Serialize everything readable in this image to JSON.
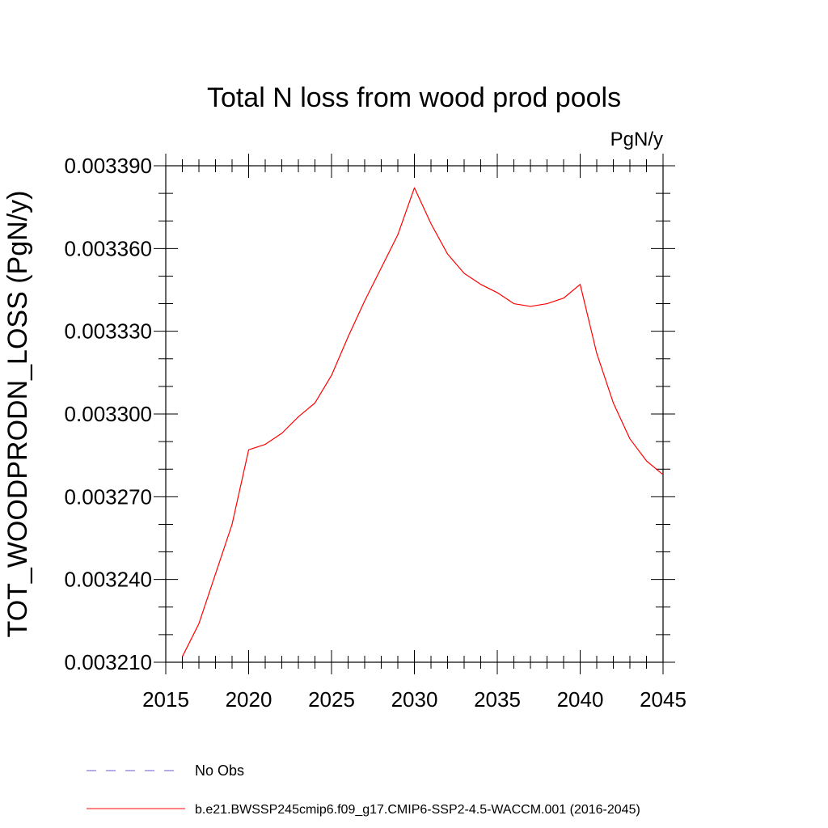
{
  "chart_data": {
    "type": "line",
    "title": "Total N loss from wood prod pools",
    "units_label": "PgN/y",
    "ylabel": "TOT_WOODPRODN_LOSS  (PgN/y)",
    "xlabel": "",
    "xlim": [
      2015,
      2045
    ],
    "ylim": [
      0.00321,
      0.00339
    ],
    "x_ticks": [
      "2015",
      "2020",
      "2025",
      "2030",
      "2035",
      "2040",
      "2045"
    ],
    "y_ticks": [
      "0.003210",
      "0.003240",
      "0.003270",
      "0.003300",
      "0.003330",
      "0.003360",
      "0.003390"
    ],
    "grid": false,
    "legend_position": "bottom",
    "series": [
      {
        "name": "b.e21.BWSSP245cmip6.f09_g17.CMIP6-SSP2-4.5-WACCM.001 (2016-2045)",
        "color": "#ff0000",
        "dash": "solid",
        "x": [
          2016,
          2017,
          2018,
          2019,
          2020,
          2021,
          2022,
          2023,
          2024,
          2025,
          2026,
          2027,
          2028,
          2029,
          2030,
          2031,
          2032,
          2033,
          2034,
          2035,
          2036,
          2037,
          2038,
          2039,
          2040,
          2041,
          2042,
          2043,
          2044,
          2045
        ],
        "y": [
          0.003212,
          0.003224,
          0.003242,
          0.00326,
          0.003287,
          0.003289,
          0.003293,
          0.003299,
          0.003304,
          0.003314,
          0.003328,
          0.003341,
          0.003353,
          0.003365,
          0.003382,
          0.003369,
          0.003358,
          0.003351,
          0.003347,
          0.003344,
          0.00334,
          0.003339,
          0.00334,
          0.003342,
          0.003347,
          0.003322,
          0.003304,
          0.003291,
          0.003283,
          0.003278
        ]
      }
    ],
    "legend": [
      {
        "label": "No Obs",
        "color": "#6a5acd",
        "dash": "dashed"
      },
      {
        "label": "b.e21.BWSSP245cmip6.f09_g17.CMIP6-SSP2-4.5-WACCM.001 (2016-2045)",
        "color": "#ff0000",
        "dash": "solid"
      }
    ]
  }
}
